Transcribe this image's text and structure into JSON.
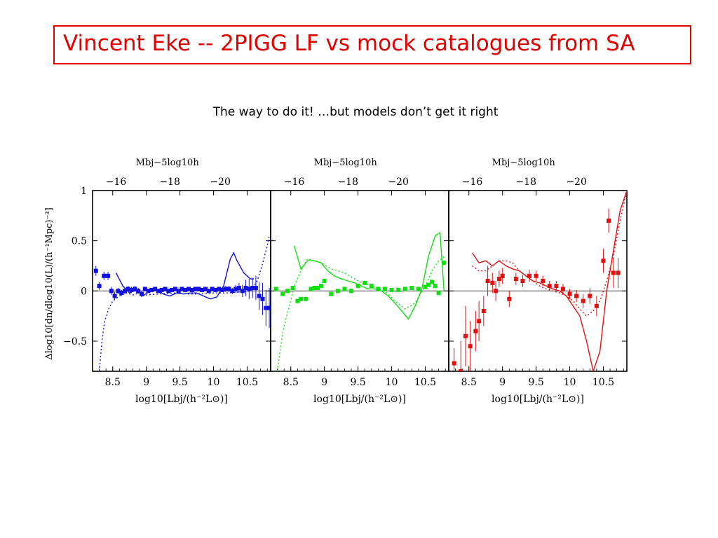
{
  "slide": {
    "title": "Vincent Eke  -- 2PIGG LF vs mock catalogues from SA",
    "subtitle": "The way to do it! …but models don’t get it right",
    "title_color": "#e00000"
  },
  "chart_data": [
    {
      "type": "line",
      "panel": "left",
      "color": "#1010e0",
      "xlabel": "log10[Lbj/(h⁻²L⊙)]",
      "ylabel": "Δlog10[dn/dlog10(L)/(h⁻¹Mpc)⁻³]",
      "top_axis_label": "Mbj−5log10h",
      "x_ticks": [
        "8.5",
        "9",
        "9.5",
        "10",
        "10.5"
      ],
      "y_ticks": [
        "1",
        "0.5",
        "0",
        "−0.5"
      ],
      "top_ticks": [
        "−16",
        "−18",
        "−20"
      ],
      "xlim": [
        8.2,
        10.85
      ],
      "ylim": [
        -0.8,
        1.0
      ],
      "points": {
        "x": [
          8.25,
          8.3,
          8.37,
          8.43,
          8.48,
          8.53,
          8.58,
          8.63,
          8.68,
          8.73,
          8.78,
          8.83,
          8.88,
          8.93,
          8.98,
          9.03,
          9.08,
          9.13,
          9.18,
          9.23,
          9.28,
          9.33,
          9.38,
          9.43,
          9.48,
          9.53,
          9.58,
          9.63,
          9.68,
          9.73,
          9.78,
          9.83,
          9.88,
          9.93,
          9.98,
          10.03,
          10.08,
          10.13,
          10.18,
          10.23,
          10.28,
          10.33,
          10.38,
          10.43,
          10.48,
          10.53,
          10.58,
          10.63,
          10.68,
          10.73,
          10.78,
          10.83
        ],
        "y": [
          0.2,
          0.05,
          0.15,
          0.15,
          0.0,
          -0.05,
          0.0,
          -0.02,
          0.0,
          0.02,
          0.01,
          0.02,
          0.0,
          -0.03,
          0.02,
          0.0,
          0.01,
          0.02,
          0.0,
          0.01,
          0.02,
          0.0,
          0.01,
          0.02,
          0.0,
          0.02,
          0.01,
          0.02,
          0.01,
          0.02,
          0.02,
          0.01,
          0.02,
          0.0,
          0.02,
          0.01,
          0.02,
          0.01,
          0.02,
          0.02,
          0.0,
          0.02,
          0.03,
          0.0,
          0.03,
          0.02,
          0.03,
          0.03,
          -0.05,
          -0.08,
          -0.17,
          -0.17
        ],
        "err": [
          0.05,
          0.04,
          0.04,
          0.04,
          0.04,
          0.04,
          0.03,
          0.03,
          0.03,
          0.03,
          0.03,
          0.03,
          0.03,
          0.03,
          0.02,
          0.02,
          0.02,
          0.02,
          0.02,
          0.02,
          0.02,
          0.02,
          0.02,
          0.02,
          0.02,
          0.02,
          0.02,
          0.02,
          0.02,
          0.02,
          0.02,
          0.02,
          0.02,
          0.02,
          0.02,
          0.02,
          0.02,
          0.02,
          0.03,
          0.03,
          0.03,
          0.04,
          0.05,
          0.06,
          0.08,
          0.1,
          0.1,
          0.12,
          0.14,
          0.16,
          0.18,
          0.2
        ]
      },
      "solid_line": {
        "x": [
          8.55,
          8.65,
          8.75,
          8.85,
          8.95,
          9.05,
          9.15,
          9.25,
          9.35,
          9.45,
          9.55,
          9.65,
          9.75,
          9.85,
          9.95,
          10.05,
          10.15,
          10.25,
          10.3,
          10.35,
          10.45,
          10.55,
          10.6
        ],
        "y": [
          0.18,
          0.05,
          -0.02,
          0.02,
          -0.05,
          0.0,
          0.02,
          -0.03,
          -0.05,
          -0.02,
          -0.03,
          -0.02,
          -0.02,
          -0.05,
          -0.08,
          -0.06,
          0.05,
          0.32,
          0.38,
          0.3,
          0.18,
          0.12,
          0.12
        ]
      },
      "dotted_line": {
        "x": [
          8.3,
          8.34,
          8.38,
          8.44,
          8.5,
          8.6,
          8.7,
          8.8,
          8.9,
          9.0,
          9.2,
          9.4,
          9.6,
          9.8,
          10.0,
          10.2,
          10.4,
          10.55,
          10.65,
          10.72,
          10.8,
          10.83
        ],
        "y": [
          -0.8,
          -0.5,
          -0.3,
          -0.18,
          -0.1,
          -0.05,
          -0.02,
          -0.04,
          -0.02,
          -0.04,
          -0.03,
          -0.02,
          -0.03,
          -0.03,
          -0.02,
          -0.02,
          -0.01,
          0.0,
          0.1,
          0.25,
          0.45,
          0.55
        ]
      }
    },
    {
      "type": "line",
      "panel": "middle",
      "color": "#10e010",
      "xlabel": "log10[Lbj/(h⁻²L⊙)]",
      "top_axis_label": "Mbj−5log10h",
      "x_ticks": [
        "8.5",
        "9",
        "9.5",
        "10",
        "10.5"
      ],
      "top_ticks": [
        "−16",
        "−18",
        "−20"
      ],
      "xlim": [
        8.2,
        10.85
      ],
      "ylim": [
        -0.8,
        1.0
      ],
      "points": {
        "x": [
          8.28,
          8.38,
          8.45,
          8.53,
          8.6,
          8.65,
          8.72,
          8.8,
          8.85,
          8.9,
          8.95,
          9.0,
          9.1,
          9.2,
          9.3,
          9.4,
          9.5,
          9.6,
          9.7,
          9.8,
          9.9,
          10.0,
          10.1,
          10.2,
          10.3,
          10.4,
          10.5,
          10.55,
          10.6,
          10.65,
          10.7,
          10.78
        ],
        "y": [
          0.02,
          -0.03,
          0.0,
          0.03,
          -0.1,
          -0.08,
          -0.08,
          0.02,
          0.03,
          0.03,
          0.05,
          0.1,
          -0.03,
          0.0,
          0.02,
          0.0,
          0.05,
          0.08,
          0.05,
          0.02,
          0.02,
          0.01,
          0.01,
          0.02,
          0.03,
          0.02,
          0.04,
          0.06,
          0.09,
          0.05,
          -0.02,
          0.28
        ]
      },
      "solid_line": {
        "x": [
          8.55,
          8.65,
          8.75,
          8.85,
          8.95,
          9.05,
          9.15,
          9.25,
          9.35,
          9.45,
          9.55,
          9.65,
          9.75,
          9.85,
          9.95,
          10.05,
          10.15,
          10.25,
          10.35,
          10.45,
          10.55,
          10.65,
          10.72,
          10.78
        ],
        "y": [
          0.45,
          0.22,
          0.3,
          0.3,
          0.28,
          0.2,
          0.15,
          0.12,
          0.1,
          0.08,
          0.05,
          0.02,
          0.02,
          0.0,
          -0.05,
          -0.12,
          -0.2,
          -0.28,
          -0.15,
          0.02,
          0.35,
          0.55,
          0.58,
          0.0
        ]
      },
      "dotted_line": {
        "x": [
          8.3,
          8.35,
          8.4,
          8.48,
          8.55,
          8.65,
          8.75,
          8.85,
          8.95,
          9.1,
          9.3,
          9.5,
          9.7,
          9.9,
          10.05,
          10.2,
          10.35,
          10.5,
          10.6,
          10.7,
          10.8
        ],
        "y": [
          -0.8,
          -0.55,
          -0.35,
          -0.15,
          0.05,
          0.2,
          0.32,
          0.3,
          0.28,
          0.22,
          0.18,
          0.1,
          0.05,
          0.0,
          -0.1,
          -0.18,
          -0.12,
          0.05,
          0.2,
          0.3,
          0.35
        ]
      }
    },
    {
      "type": "line",
      "panel": "right",
      "color": "#e01010",
      "xlabel": "log10[Lbj/(h⁻²L⊙)]",
      "top_axis_label": "Mbj−5log10h",
      "x_ticks": [
        "8.5",
        "9",
        "9.5",
        "10",
        "10.5"
      ],
      "top_ticks": [
        "−16",
        "−18",
        "−20"
      ],
      "xlim": [
        8.2,
        10.85
      ],
      "ylim": [
        -0.8,
        1.0
      ],
      "points": {
        "x": [
          8.28,
          8.38,
          8.45,
          8.52,
          8.6,
          8.65,
          8.72,
          8.78,
          8.85,
          8.9,
          8.95,
          9.0,
          9.1,
          9.2,
          9.3,
          9.4,
          9.5,
          9.6,
          9.7,
          9.8,
          9.9,
          10.0,
          10.1,
          10.2,
          10.3,
          10.4,
          10.5,
          10.58,
          10.65,
          10.72
        ],
        "y": [
          -0.72,
          -0.8,
          -0.45,
          -0.55,
          -0.4,
          -0.3,
          -0.2,
          0.1,
          0.08,
          0.0,
          0.12,
          0.15,
          -0.08,
          0.12,
          0.1,
          0.15,
          0.15,
          0.1,
          0.05,
          0.05,
          0.02,
          -0.03,
          -0.05,
          -0.1,
          -0.05,
          -0.15,
          0.3,
          0.7,
          0.18,
          0.18
        ],
        "err": [
          0.15,
          0.3,
          0.3,
          0.25,
          0.2,
          0.2,
          0.15,
          0.15,
          0.1,
          0.1,
          0.08,
          0.08,
          0.08,
          0.06,
          0.06,
          0.06,
          0.05,
          0.05,
          0.05,
          0.05,
          0.05,
          0.05,
          0.06,
          0.07,
          0.08,
          0.1,
          0.12,
          0.12,
          0.15,
          0.15
        ]
      },
      "solid_line": {
        "x": [
          8.55,
          8.65,
          8.75,
          8.85,
          8.95,
          9.05,
          9.15,
          9.25,
          9.35,
          9.45,
          9.55,
          9.65,
          9.75,
          9.85,
          9.95,
          10.05,
          10.15,
          10.25,
          10.35,
          10.45,
          10.55,
          10.65,
          10.75,
          10.85
        ],
        "y": [
          0.38,
          0.28,
          0.3,
          0.25,
          0.3,
          0.25,
          0.22,
          0.2,
          0.15,
          0.1,
          0.08,
          0.05,
          0.02,
          0.0,
          -0.05,
          -0.15,
          -0.25,
          -0.5,
          -0.8,
          -0.6,
          0.0,
          0.4,
          0.8,
          1.0
        ]
      },
      "dotted_line": {
        "x": [
          8.55,
          8.65,
          8.75,
          8.85,
          8.95,
          9.05,
          9.15,
          9.25,
          9.35,
          9.45,
          9.55,
          9.65,
          9.75,
          9.85,
          9.95,
          10.05,
          10.15,
          10.25,
          10.35,
          10.45,
          10.55,
          10.65,
          10.75,
          10.85
        ],
        "y": [
          0.25,
          0.2,
          0.2,
          0.25,
          0.3,
          0.3,
          0.28,
          0.2,
          0.15,
          0.1,
          0.05,
          0.02,
          0.0,
          -0.02,
          -0.05,
          -0.1,
          -0.18,
          -0.25,
          -0.2,
          -0.1,
          0.1,
          0.35,
          0.7,
          1.0
        ]
      }
    }
  ]
}
